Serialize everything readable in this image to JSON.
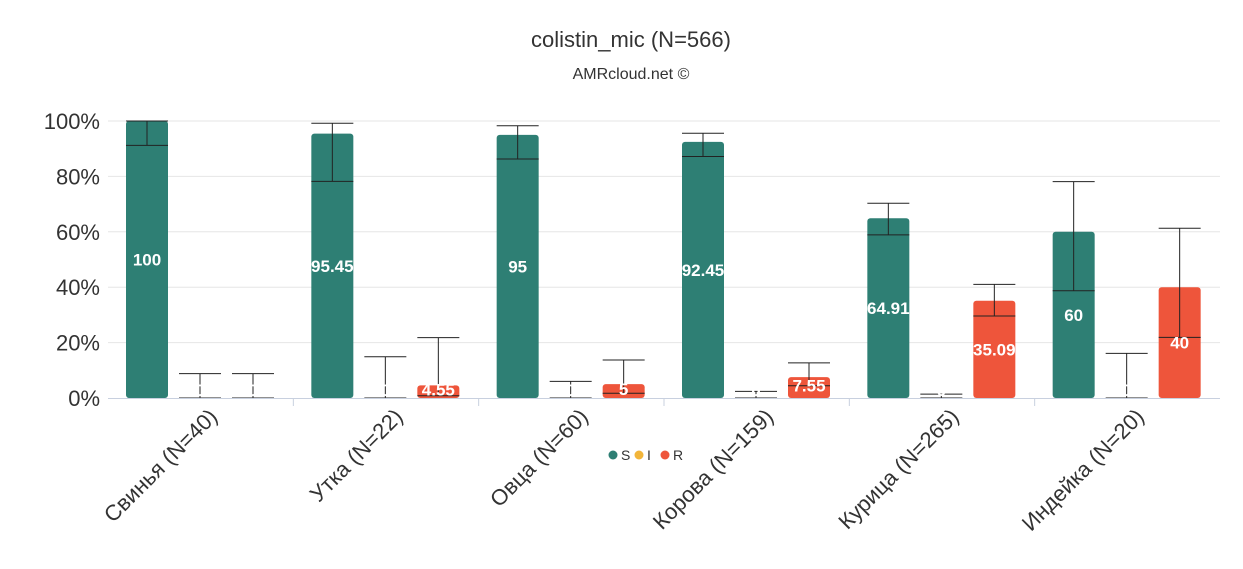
{
  "chart_data": {
    "type": "bar",
    "title": "colistin_mic (N=566)",
    "subtitle": "AMRcloud.net ©",
    "categories": [
      "Свинья (N=40)",
      "Утка (N=22)",
      "Овца (N=60)",
      "Корова (N=159)",
      "Курица (N=265)",
      "Индейка (N=20)"
    ],
    "ylim": [
      0,
      100
    ],
    "yticks": [
      "0%",
      "20%",
      "40%",
      "60%",
      "80%",
      "100%"
    ],
    "grid": true,
    "legend_position": "bottom-center",
    "series": [
      {
        "name": "S",
        "color": "#2e7f74",
        "values": [
          100,
          95.45,
          95,
          92.45,
          64.91,
          60
        ],
        "labels": [
          "100",
          "95.45",
          "95",
          "92.45",
          "64.91",
          "60"
        ],
        "ci_low": [
          91.2,
          78.2,
          86.3,
          87.2,
          58.9,
          38.7
        ],
        "ci_high": [
          100,
          99.2,
          98.3,
          95.6,
          70.3,
          78.1
        ]
      },
      {
        "name": "I",
        "color": "#f2b53a",
        "values": [
          0,
          0,
          0,
          0,
          0,
          0
        ],
        "labels": [
          "0",
          "0",
          "0",
          "0",
          "0",
          "0"
        ],
        "ci_low": [
          0,
          0,
          0,
          0,
          0,
          0
        ],
        "ci_high": [
          8.8,
          14.9,
          6.0,
          2.4,
          1.4,
          16.1
        ]
      },
      {
        "name": "R",
        "color": "#ee553b",
        "values": [
          0,
          4.55,
          5,
          7.55,
          35.09,
          40
        ],
        "labels": [
          "0",
          "4.55",
          "5",
          "7.55",
          "35.09",
          "40"
        ],
        "ci_low": [
          0,
          0.8,
          1.7,
          4.4,
          29.6,
          21.9
        ],
        "ci_high": [
          8.8,
          21.8,
          13.7,
          12.7,
          41.0,
          61.3
        ]
      }
    ]
  }
}
